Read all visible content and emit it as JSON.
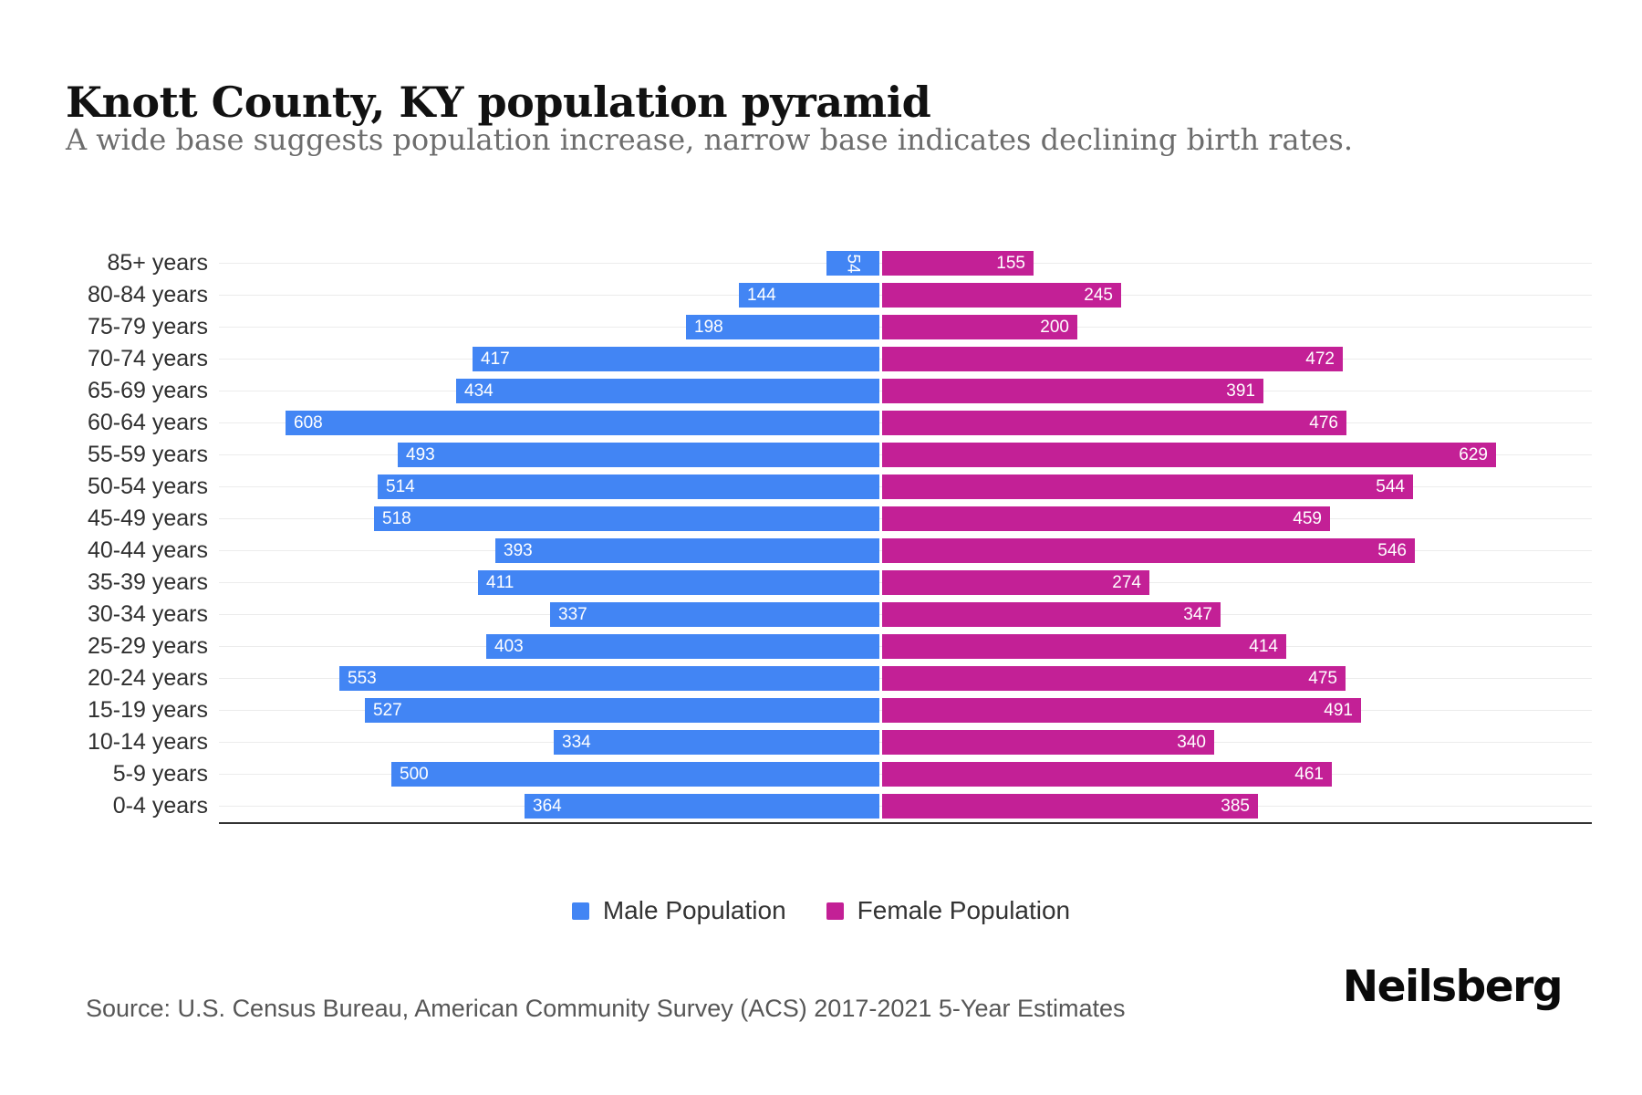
{
  "title": "Knott County, KY population pyramid",
  "subtitle": "A wide base suggests population increase, narrow base indicates declining birth rates.",
  "source": "Source: U.S. Census Bureau, American Community Survey (ACS) 2017-2021 5-Year Estimates",
  "brand": "Neilsberg",
  "legend": {
    "male_label": "Male Population",
    "female_label": "Female Population"
  },
  "colors": {
    "male": "#4285F4",
    "female": "#C32096",
    "gridline": "#ECECEC",
    "axis_line": "#333333",
    "value_text": "#FFFFFF"
  },
  "chart_data": {
    "type": "bar",
    "variant": "population-pyramid",
    "orientation": "horizontal",
    "title": "Knott County, KY population pyramid",
    "categories": [
      "85+ years",
      "80-84 years",
      "75-79 years",
      "70-74 years",
      "65-69 years",
      "60-64 years",
      "55-59 years",
      "50-54 years",
      "45-49 years",
      "40-44 years",
      "35-39 years",
      "30-34 years",
      "25-29 years",
      "20-24 years",
      "15-19 years",
      "10-14 years",
      "5-9 years",
      "0-4 years"
    ],
    "series": [
      {
        "name": "Male Population",
        "color": "#4285F4",
        "values": [
          54,
          144,
          198,
          417,
          434,
          608,
          493,
          514,
          518,
          393,
          411,
          337,
          403,
          553,
          527,
          334,
          500,
          364
        ]
      },
      {
        "name": "Female Population",
        "color": "#C32096",
        "values": [
          155,
          245,
          200,
          472,
          391,
          476,
          629,
          544,
          459,
          546,
          274,
          347,
          414,
          475,
          491,
          340,
          461,
          385
        ]
      }
    ],
    "value_labels": "inside-bar-end",
    "axis_max_per_side": 700,
    "grid": true,
    "legend_position": "bottom"
  }
}
